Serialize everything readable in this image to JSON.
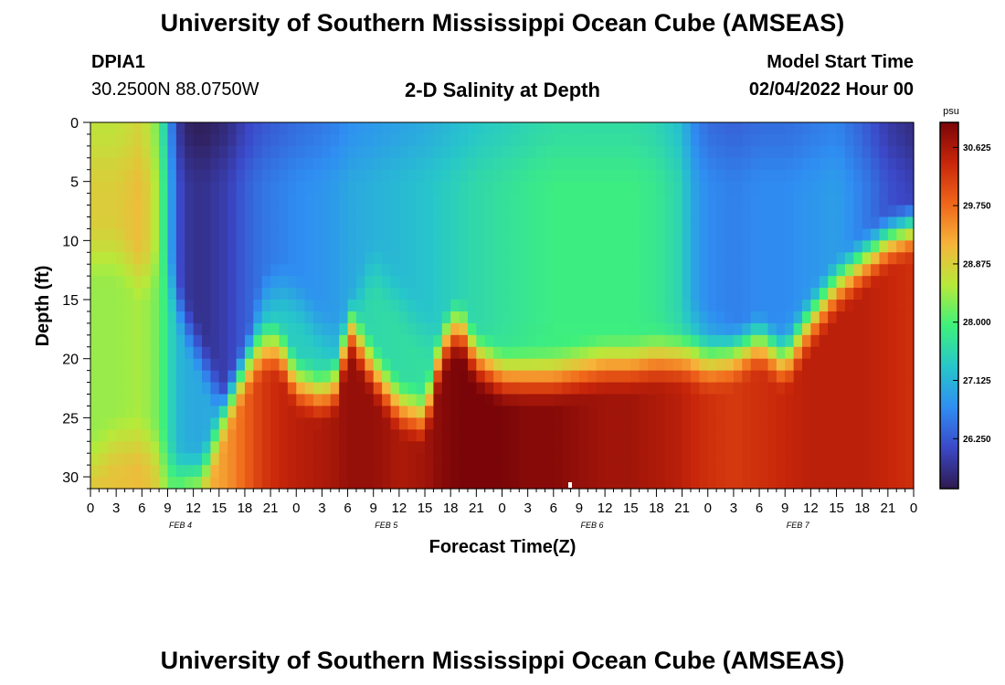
{
  "header": {
    "title": "University of Southern Mississippi Ocean Cube (AMSEAS)",
    "station": "DPIA1",
    "coords": "30.2500N  88.0750W",
    "subtitle": "2-D Salinity at Depth",
    "model_start_label": "Model Start Time",
    "model_start_value": "02/04/2022 Hour 00"
  },
  "footer": {
    "title": "University of Southern Mississippi Ocean Cube (AMSEAS)"
  },
  "chart_data": {
    "type": "heatmap",
    "title": "2-D Salinity at Depth",
    "xlabel": "Forecast Time(Z)",
    "ylabel": "Depth (ft)",
    "x_tick_labels": [
      "0",
      "3",
      "6",
      "9",
      "12",
      "15",
      "18",
      "21",
      "0",
      "3",
      "6",
      "9",
      "12",
      "15",
      "18",
      "21",
      "0",
      "3",
      "6",
      "9",
      "12",
      "15",
      "18",
      "21",
      "0",
      "3",
      "6",
      "9",
      "12",
      "15",
      "18",
      "21",
      "0"
    ],
    "x_range_hours": [
      0,
      96
    ],
    "date_labels": [
      {
        "text": "FEB 4",
        "hour": 10.5
      },
      {
        "text": "FEB 5",
        "hour": 34.5
      },
      {
        "text": "FEB 6",
        "hour": 58.5
      },
      {
        "text": "FEB 7",
        "hour": 82.5
      }
    ],
    "y_tick_labels": [
      "0",
      "5",
      "10",
      "15",
      "20",
      "25",
      "30"
    ],
    "y_range_ft": [
      0,
      31
    ],
    "colorbar": {
      "unit": "psu",
      "tick_labels": [
        "30.625",
        "29.750",
        "28.875",
        "28.000",
        "27.125",
        "26.250"
      ],
      "range": [
        25.5,
        31.0
      ],
      "colors": [
        "#2e1a4e",
        "#3b48c8",
        "#2f8ef2",
        "#27c6ca",
        "#3ef07c",
        "#b6ea3a",
        "#f6b53a",
        "#f0661a",
        "#c8260a",
        "#7a0508"
      ]
    },
    "contour_hours": [
      0,
      3,
      6,
      8,
      9,
      10,
      11,
      13,
      16,
      18,
      20,
      22,
      24,
      27,
      29,
      30,
      33,
      36,
      39,
      41,
      43,
      45,
      48,
      51,
      54,
      57,
      60,
      63,
      66,
      69,
      70,
      72,
      75,
      78,
      81,
      84,
      87,
      90,
      93,
      96
    ],
    "bottom_layer_depth_ft": [
      30,
      28,
      28,
      29,
      30,
      31,
      31,
      31,
      25,
      22,
      20,
      20,
      23,
      24,
      23,
      18,
      22,
      25,
      26,
      20,
      18,
      21,
      22.5,
      22.5,
      22.5,
      22,
      21.5,
      21.5,
      21,
      21,
      21,
      21.5,
      21,
      19.5,
      21.5,
      18,
      15,
      13,
      11,
      10
    ],
    "upper_layer_depth_ft": [
      14,
      14,
      16,
      15,
      16,
      18,
      20,
      23,
      28,
      24,
      18,
      17,
      18,
      21,
      22,
      20,
      15,
      18,
      21,
      22,
      24,
      23,
      22,
      22,
      22,
      22,
      22,
      22,
      21,
      21,
      20,
      21,
      22,
      23,
      22,
      19,
      17,
      15,
      14,
      13
    ],
    "mid_salinity_psu": [
      28.9,
      28.9,
      29.1,
      28.4,
      27.3,
      26.3,
      25.9,
      25.8,
      26.0,
      26.3,
      26.5,
      26.6,
      26.7,
      26.8,
      26.9,
      27.0,
      27.1,
      27.2,
      27.3,
      27.4,
      27.5,
      27.6,
      27.7,
      27.8,
      27.9,
      27.9,
      27.9,
      27.9,
      27.8,
      27.5,
      27.0,
      26.7,
      26.6,
      26.7,
      26.7,
      26.8,
      26.9,
      26.6,
      26.2,
      26.0
    ],
    "bottom_salinity_psu": [
      29.0,
      29.0,
      29.1,
      28.8,
      28.2,
      28.4,
      28.8,
      29.1,
      29.4,
      29.8,
      30.2,
      30.4,
      30.5,
      30.6,
      30.7,
      30.8,
      30.8,
      30.6,
      30.7,
      30.9,
      31.0,
      31.0,
      31.0,
      30.9,
      30.9,
      30.8,
      30.7,
      30.7,
      30.6,
      30.5,
      30.4,
      30.3,
      30.2,
      30.3,
      30.4,
      30.5,
      30.5,
      30.5,
      30.4,
      30.3
    ]
  }
}
